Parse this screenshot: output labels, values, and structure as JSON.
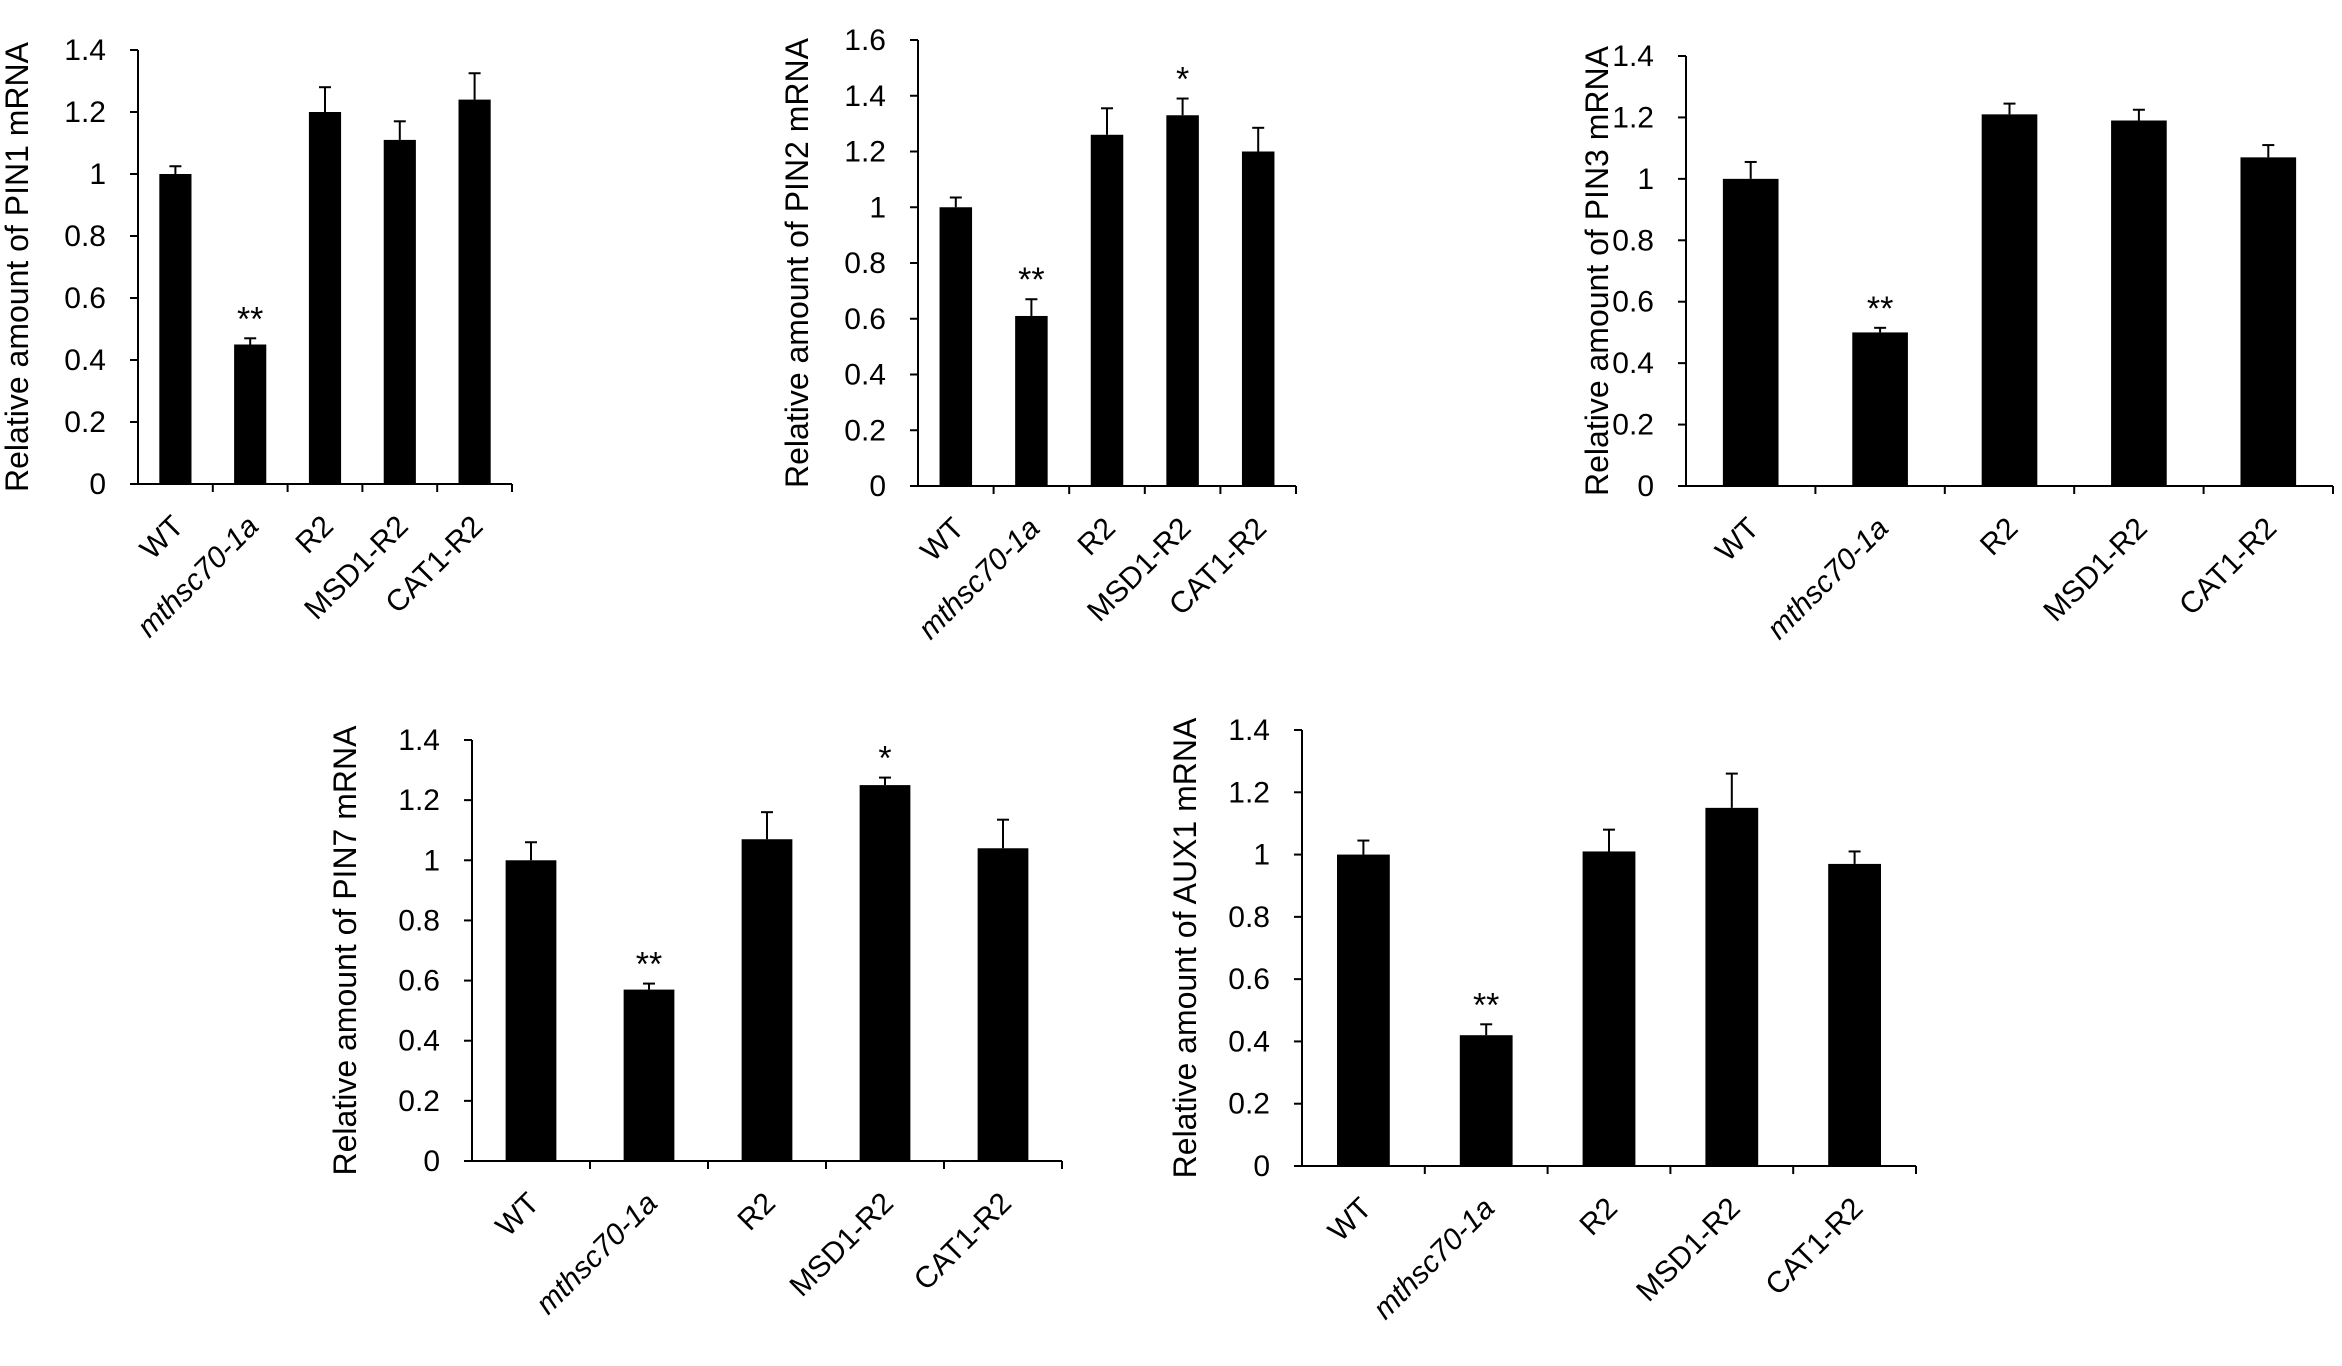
{
  "chart_data": [
    {
      "type": "bar",
      "ylabel": "Relative amount of PIN1 mRNA",
      "categories": [
        "WT",
        "mthsc70-1a",
        "R2",
        "MSD1-R2",
        "CAT1-R2"
      ],
      "values": [
        1.0,
        0.45,
        1.2,
        1.11,
        1.24
      ],
      "errors": [
        0.025,
        0.02,
        0.08,
        0.06,
        0.085
      ],
      "significance": [
        "",
        "**",
        "",
        "",
        ""
      ],
      "yticks": [
        "0",
        "0.2",
        "0.4",
        "0.6",
        "0.8",
        "1",
        "1.2",
        "1.4"
      ],
      "ylim": [
        0,
        1.4
      ]
    },
    {
      "type": "bar",
      "ylabel": "Relative amount of PIN2 mRNA",
      "categories": [
        "WT",
        "mthsc70-1a",
        "R2",
        "MSD1-R2",
        "CAT1-R2"
      ],
      "values": [
        1.0,
        0.61,
        1.26,
        1.33,
        1.2
      ],
      "errors": [
        0.035,
        0.06,
        0.095,
        0.06,
        0.085
      ],
      "significance": [
        "",
        "**",
        "",
        "*",
        ""
      ],
      "yticks": [
        "0",
        "0.2",
        "0.4",
        "0.6",
        "0.8",
        "1",
        "1.2",
        "1.4",
        "1.6"
      ],
      "ylim": [
        0,
        1.6
      ]
    },
    {
      "type": "bar",
      "ylabel": "Relative amount of PIN3 mRNA",
      "categories": [
        "WT",
        "mthsc70-1a",
        "R2",
        "MSD1-R2",
        "CAT1-R2"
      ],
      "values": [
        1.0,
        0.5,
        1.21,
        1.19,
        1.07
      ],
      "errors": [
        0.055,
        0.015,
        0.035,
        0.035,
        0.04
      ],
      "significance": [
        "",
        "**",
        "",
        "",
        ""
      ],
      "yticks": [
        "0",
        "0.2",
        "0.4",
        "0.6",
        "0.8",
        "1",
        "1.2",
        "1.4"
      ],
      "ylim": [
        0,
        1.4
      ]
    },
    {
      "type": "bar",
      "ylabel": "Relative amount of PIN7 mRNA",
      "categories": [
        "WT",
        "mthsc70-1a",
        "R2",
        "MSD1-R2",
        "CAT1-R2"
      ],
      "values": [
        1.0,
        0.57,
        1.07,
        1.25,
        1.04
      ],
      "errors": [
        0.06,
        0.02,
        0.09,
        0.025,
        0.095
      ],
      "significance": [
        "",
        "**",
        "",
        "*",
        ""
      ],
      "yticks": [
        "0",
        "0.2",
        "0.4",
        "0.6",
        "0.8",
        "1",
        "1.2",
        "1.4"
      ],
      "ylim": [
        0,
        1.4
      ]
    },
    {
      "type": "bar",
      "ylabel": "Relative amount of AUX1 mRNA",
      "categories": [
        "WT",
        "mthsc70-1a",
        "R2",
        "MSD1-R2",
        "CAT1-R2"
      ],
      "values": [
        1.0,
        0.42,
        1.01,
        1.15,
        0.97
      ],
      "errors": [
        0.045,
        0.035,
        0.07,
        0.11,
        0.04
      ],
      "significance": [
        "",
        "**",
        "",
        "",
        ""
      ],
      "yticks": [
        "0",
        "0.2",
        "0.4",
        "0.6",
        "0.8",
        "1",
        "1.2",
        "1.4"
      ],
      "ylim": [
        0,
        1.4
      ]
    }
  ],
  "colors": {
    "bar": "#000000",
    "axis": "#000000"
  }
}
